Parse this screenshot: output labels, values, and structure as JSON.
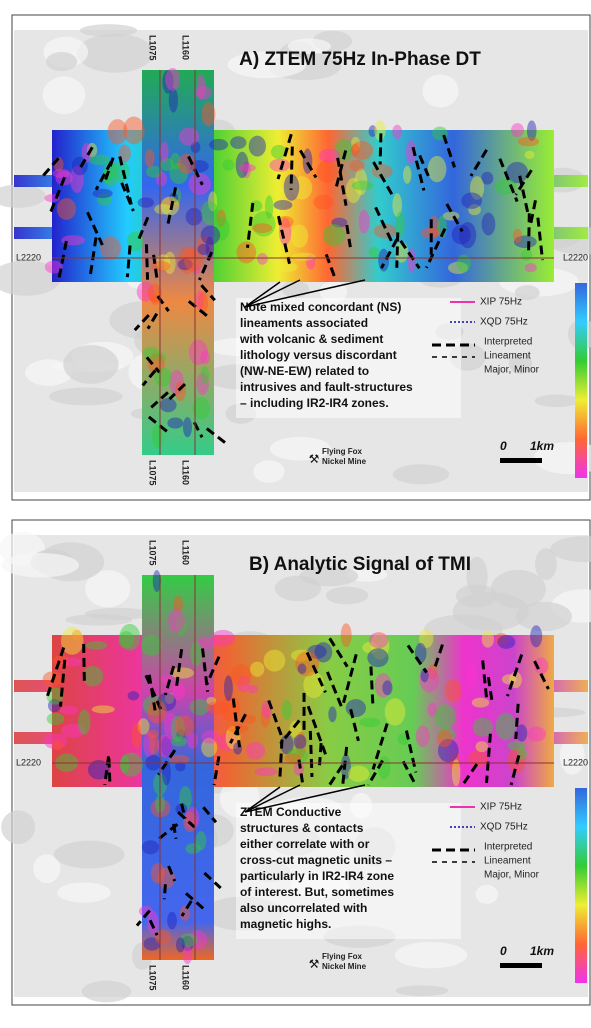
{
  "panels": [
    {
      "title": "A) ZTEM 75Hz In-Phase DT",
      "line_labels": [
        "L1075",
        "L1160"
      ],
      "cross_line": "L2220",
      "annotation": [
        "Note mixed concordant (NS)",
        "lineaments associated",
        "with volcanic & sediment",
        "lithology versus discordant",
        "(NW-NE-EW) related to",
        "intrusives and fault-structures",
        "– including IR2-IR4 zones."
      ],
      "legend": {
        "xip": "XIP 75Hz",
        "xqd": "XQD 75Hz",
        "lineament": [
          "Interpreted",
          "Lineament",
          "Major, Minor"
        ]
      },
      "scale": [
        "0",
        "1km"
      ],
      "mine": [
        "Flying Fox",
        "Nickel Mine"
      ]
    },
    {
      "title": "B) Analytic Signal of TMI",
      "line_labels": [
        "L1075",
        "L1160"
      ],
      "cross_line": "L2220",
      "annotation": [
        "ZTEM Conductive",
        "structures & contacts",
        "either correlate with or",
        "cross-cut magnetic units –",
        "particularly in IR2-IR4 zone",
        "of interest. But, sometimes",
        "also uncorrelated with",
        "magnetic highs."
      ],
      "legend": {
        "xip": "XIP 75Hz",
        "xqd": "XQD 75Hz",
        "lineament": [
          "Interpreted",
          "Lineament",
          "Major, Minor"
        ]
      },
      "scale": [
        "0",
        "1km"
      ],
      "mine": [
        "Flying Fox",
        "Nickel Mine"
      ]
    }
  ]
}
